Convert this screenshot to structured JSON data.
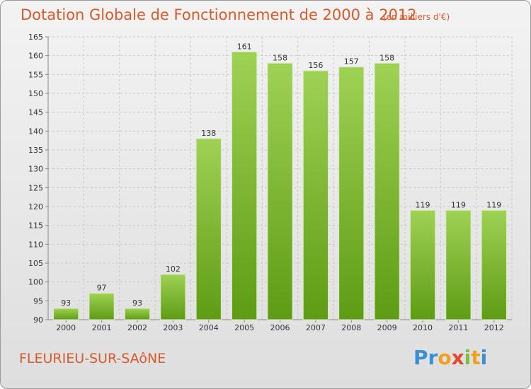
{
  "title": "Dotation Globale de Fonctionnement de 2000 à 2012",
  "subtitle": "(en milliers d'€)",
  "commune": "FLEURIEU-SUR-SAôNE",
  "logo": {
    "letters": [
      {
        "ch": "P",
        "color": "#3a8fd6"
      },
      {
        "ch": "r",
        "color": "#3a8fd6"
      },
      {
        "ch": "o",
        "color": "#f0a020"
      },
      {
        "ch": "x",
        "color": "#e0492a"
      },
      {
        "ch": "i",
        "color": "#7cc043"
      },
      {
        "ch": "t",
        "color": "#f0a020"
      },
      {
        "ch": "i",
        "color": "#3a8fd6"
      }
    ]
  },
  "colors": {
    "bar_top": "#9fd155",
    "bar_bottom": "#5e9c14",
    "text_accent": "#d75a2a"
  },
  "chart_data": {
    "type": "bar",
    "categories": [
      "2000",
      "2001",
      "2002",
      "2003",
      "2004",
      "2005",
      "2006",
      "2007",
      "2008",
      "2009",
      "2010",
      "2011",
      "2012"
    ],
    "values": [
      93,
      97,
      93,
      102,
      138,
      161,
      158,
      156,
      157,
      158,
      119,
      119,
      119
    ],
    "ylim": [
      90,
      165
    ],
    "yticks": [
      90,
      95,
      100,
      105,
      110,
      115,
      120,
      125,
      130,
      135,
      140,
      145,
      150,
      155,
      160,
      165
    ],
    "xlabel": "",
    "ylabel": "",
    "grid": true
  }
}
